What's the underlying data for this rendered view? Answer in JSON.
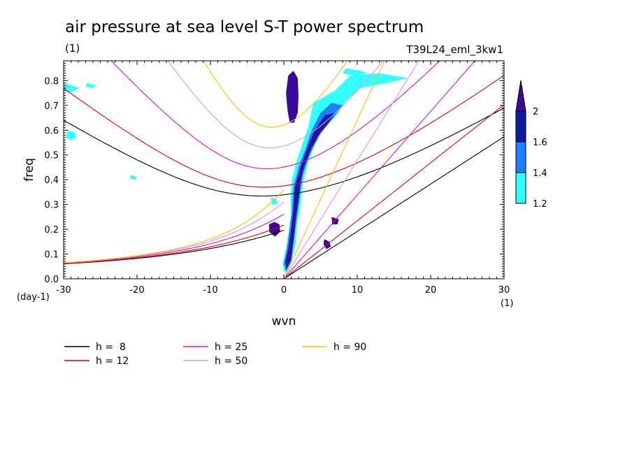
{
  "chart_data": {
    "type": "contour",
    "title": "air pressure at sea level S-T power spectrum",
    "subtitle": "(1)",
    "run_label": "T39L24_eml_3kw1",
    "xlabel": "wvn",
    "ylabel": "freq",
    "x_unit": "(1)",
    "y_unit": "(day-1)",
    "xlim": [
      -30,
      30
    ],
    "ylim": [
      0,
      0.88
    ],
    "x_ticks": [
      -30,
      -20,
      -10,
      0,
      10,
      20,
      30
    ],
    "x_tick_labels": [
      "-30",
      "-20",
      "-10",
      "0",
      "10",
      "20",
      "30"
    ],
    "y_ticks": [
      0,
      0.1,
      0.2,
      0.3,
      0.4,
      0.5,
      0.6,
      0.7,
      0.8
    ],
    "y_tick_labels": [
      "0.0",
      "0.1",
      "0.2",
      "0.3",
      "0.4",
      "0.5",
      "0.6",
      "0.7",
      "0.8"
    ],
    "colorbar": {
      "levels": [
        1.2,
        1.4,
        1.6,
        2
      ],
      "labels": [
        "1.2",
        "1.4",
        "1.6",
        "2"
      ],
      "colors": [
        "#33ffff",
        "#1e7fff",
        "#0a1ea0",
        "#3a0a9a"
      ]
    },
    "contour_regions": [
      {
        "level": 1.2,
        "points": [
          [
            0.2,
            0.02
          ],
          [
            1.0,
            0.06
          ],
          [
            1.6,
            0.14
          ],
          [
            1.8,
            0.22
          ],
          [
            2.3,
            0.3
          ],
          [
            2.6,
            0.38
          ],
          [
            3.2,
            0.46
          ],
          [
            4.2,
            0.54
          ],
          [
            5.5,
            0.61
          ],
          [
            7.2,
            0.66
          ],
          [
            8.5,
            0.72
          ],
          [
            10.5,
            0.77
          ],
          [
            14,
            0.79
          ],
          [
            17,
            0.81
          ],
          [
            13,
            0.83
          ],
          [
            9,
            0.82
          ],
          [
            7,
            0.76
          ],
          [
            5.2,
            0.73
          ],
          [
            4.0,
            0.71
          ],
          [
            3.4,
            0.62
          ],
          [
            2.6,
            0.55
          ],
          [
            1.8,
            0.48
          ],
          [
            1.1,
            0.4
          ],
          [
            0.9,
            0.32
          ],
          [
            1.0,
            0.26
          ],
          [
            0.6,
            0.18
          ],
          [
            0.3,
            0.12
          ],
          [
            -0.2,
            0.06
          ]
        ]
      },
      {
        "level": 1.4,
        "points": [
          [
            0.3,
            0.03
          ],
          [
            1.0,
            0.07
          ],
          [
            1.4,
            0.16
          ],
          [
            1.8,
            0.25
          ],
          [
            2.2,
            0.34
          ],
          [
            2.6,
            0.42
          ],
          [
            3.5,
            0.5
          ],
          [
            4.8,
            0.58
          ],
          [
            6.5,
            0.64
          ],
          [
            8.0,
            0.7
          ],
          [
            6.5,
            0.71
          ],
          [
            5.0,
            0.67
          ],
          [
            3.8,
            0.6
          ],
          [
            2.9,
            0.52
          ],
          [
            2.0,
            0.45
          ],
          [
            1.3,
            0.37
          ],
          [
            1.1,
            0.28
          ],
          [
            0.8,
            0.2
          ],
          [
            0.4,
            0.12
          ],
          [
            0.0,
            0.06
          ]
        ]
      },
      {
        "level": 1.6,
        "points": [
          [
            0.4,
            0.04
          ],
          [
            1.0,
            0.08
          ],
          [
            1.3,
            0.15
          ],
          [
            1.6,
            0.24
          ],
          [
            2.0,
            0.32
          ],
          [
            2.3,
            0.4
          ],
          [
            3.0,
            0.48
          ],
          [
            4.2,
            0.56
          ],
          [
            5.8,
            0.62
          ],
          [
            7.0,
            0.67
          ],
          [
            5.6,
            0.66
          ],
          [
            4.2,
            0.6
          ],
          [
            3.1,
            0.52
          ],
          [
            2.3,
            0.45
          ],
          [
            1.5,
            0.37
          ],
          [
            1.3,
            0.28
          ],
          [
            1.0,
            0.2
          ],
          [
            0.6,
            0.12
          ],
          [
            0.2,
            0.07
          ]
        ]
      },
      {
        "level": 2,
        "points": [
          [
            0.5,
            0.05
          ],
          [
            0.9,
            0.09
          ],
          [
            1.2,
            0.14
          ],
          [
            1.4,
            0.22
          ],
          [
            1.8,
            0.3
          ],
          [
            2.1,
            0.37
          ],
          [
            2.7,
            0.45
          ],
          [
            3.8,
            0.53
          ],
          [
            5.2,
            0.6
          ],
          [
            6.2,
            0.64
          ],
          [
            5.0,
            0.62
          ],
          [
            3.8,
            0.56
          ],
          [
            2.8,
            0.49
          ],
          [
            2.1,
            0.43
          ],
          [
            1.5,
            0.35
          ],
          [
            1.3,
            0.27
          ],
          [
            1.0,
            0.19
          ],
          [
            0.7,
            0.12
          ],
          [
            0.3,
            0.08
          ]
        ]
      },
      {
        "level": 2,
        "points": [
          [
            0.5,
            0.68
          ],
          [
            0.8,
            0.63
          ],
          [
            1.4,
            0.63
          ],
          [
            1.9,
            0.67
          ],
          [
            2.0,
            0.74
          ],
          [
            1.9,
            0.81
          ],
          [
            1.3,
            0.84
          ],
          [
            0.6,
            0.82
          ],
          [
            0.3,
            0.75
          ]
        ]
      },
      {
        "level": 2,
        "points": [
          [
            -2.0,
            0.19
          ],
          [
            -1.2,
            0.17
          ],
          [
            -0.5,
            0.19
          ],
          [
            -0.6,
            0.22
          ],
          [
            -1.3,
            0.23
          ],
          [
            -2.0,
            0.22
          ]
        ]
      },
      {
        "level": 1.2,
        "points": [
          [
            -29.5,
            0.6
          ],
          [
            -28.5,
            0.59
          ],
          [
            -28.2,
            0.57
          ],
          [
            -29.0,
            0.56
          ],
          [
            -29.7,
            0.57
          ]
        ]
      },
      {
        "level": 1.2,
        "points": [
          [
            -29.8,
            0.79
          ],
          [
            -28.8,
            0.78
          ],
          [
            -27.8,
            0.77
          ],
          [
            -28.5,
            0.76
          ],
          [
            -29.5,
            0.75
          ],
          [
            -30,
            0.77
          ]
        ]
      },
      {
        "level": 1.2,
        "points": [
          [
            -26.8,
            0.79
          ],
          [
            -25.5,
            0.78
          ],
          [
            -26.0,
            0.77
          ],
          [
            -27.0,
            0.775
          ]
        ]
      },
      {
        "level": 1.2,
        "points": [
          [
            -20.8,
            0.42
          ],
          [
            -20.0,
            0.41
          ],
          [
            -20.2,
            0.4
          ],
          [
            -21.0,
            0.405
          ]
        ]
      },
      {
        "level": 1.2,
        "points": [
          [
            -1.8,
            0.33
          ],
          [
            -1.0,
            0.32
          ],
          [
            -0.8,
            0.3
          ],
          [
            -1.6,
            0.3
          ]
        ]
      },
      {
        "level": 1.2,
        "points": [
          [
            8.5,
            0.85
          ],
          [
            10.5,
            0.84
          ],
          [
            11.5,
            0.83
          ],
          [
            9.5,
            0.82
          ],
          [
            8.0,
            0.83
          ]
        ]
      },
      {
        "level": 2,
        "points": [
          [
            5.5,
            0.16
          ],
          [
            6.2,
            0.15
          ],
          [
            6.4,
            0.13
          ],
          [
            5.8,
            0.12
          ],
          [
            5.4,
            0.14
          ]
        ]
      },
      {
        "level": 2,
        "points": [
          [
            6.5,
            0.25
          ],
          [
            7.5,
            0.24
          ],
          [
            7.3,
            0.22
          ],
          [
            6.6,
            0.22
          ]
        ]
      }
    ],
    "series": [
      {
        "name": "h =  8",
        "h": 8,
        "color": "#000000"
      },
      {
        "name": "h = 12",
        "h": 12,
        "color": "#dd0000"
      },
      {
        "name": "h = 25",
        "h": 25,
        "color": "#dd10b0"
      },
      {
        "name": "h = 50",
        "h": 50,
        "color": "#e090e0"
      },
      {
        "name": "h = 90",
        "h": 90,
        "color": "#f0c000"
      }
    ],
    "grid": false,
    "legend_position": "bottom"
  }
}
